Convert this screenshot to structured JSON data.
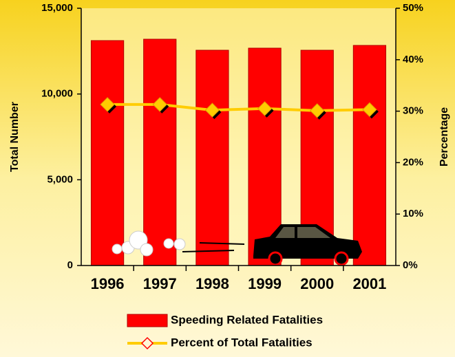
{
  "chart_data": {
    "type": "bar",
    "categories": [
      "1996",
      "1997",
      "1998",
      "1999",
      "2000",
      "2001"
    ],
    "series": [
      {
        "name": "Speeding Related Fatalities",
        "type": "bar",
        "color": "#ff0000",
        "values": [
          13115,
          13195,
          12553,
          12674,
          12553,
          12834
        ]
      },
      {
        "name": "Percent of Total Fatalities",
        "type": "line",
        "axis": "y2",
        "color": "#ffcc00",
        "values": [
          31.3,
          31.3,
          30.2,
          30.5,
          30.1,
          30.3
        ]
      }
    ],
    "ylabel": "Total Number",
    "y2label": "Percentage",
    "ylim": [
      0,
      15000
    ],
    "yticks": [
      0,
      {
        "value": 5000,
        "label": "5,000"
      },
      {
        "value": 10000,
        "label": "10,000"
      },
      {
        "value": 15000,
        "label": "15,000"
      }
    ],
    "y2lim": [
      0,
      50
    ],
    "y2ticks": [
      {
        "value": 0,
        "label": "0%"
      },
      {
        "value": 10,
        "label": "10%"
      },
      {
        "value": 20,
        "label": "20%"
      },
      {
        "value": 30,
        "label": "30%"
      },
      {
        "value": 40,
        "label": "40%"
      },
      {
        "value": 50,
        "label": "50%"
      }
    ],
    "legend": "bottom"
  }
}
